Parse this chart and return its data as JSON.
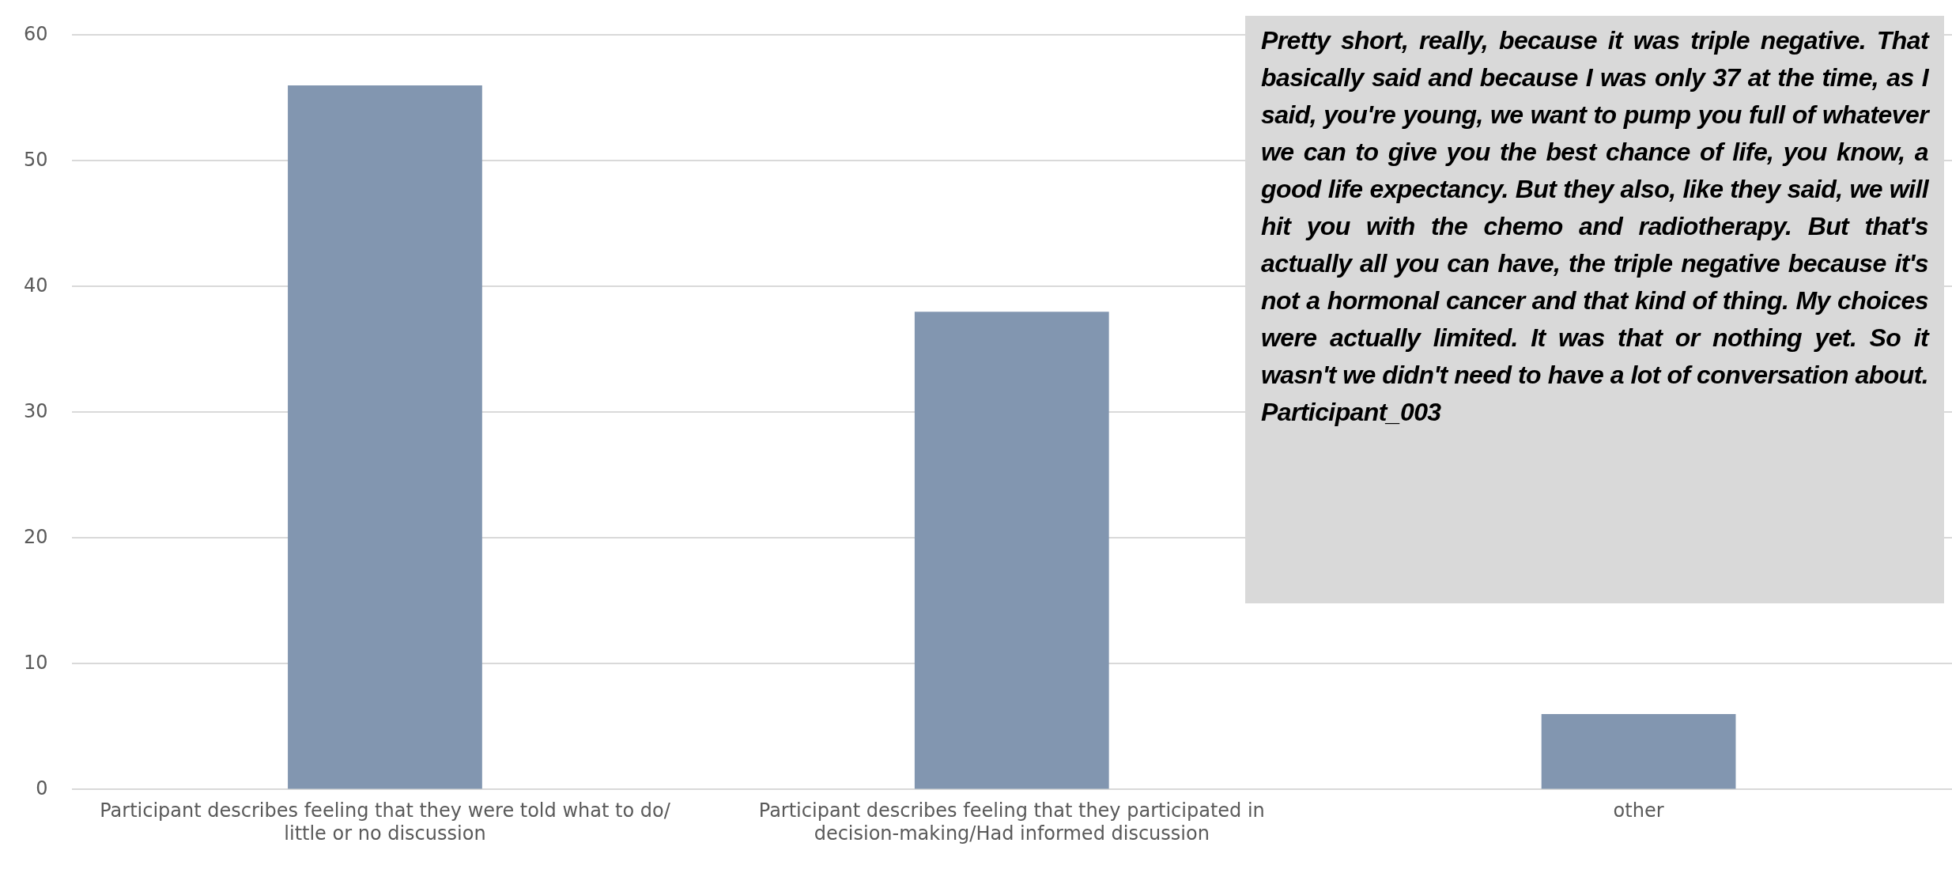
{
  "chart_data": {
    "type": "bar",
    "categories": [
      "Participant describes feeling that they were told what to do/ little or no discussion",
      "Participant describes feeling that they participated in decision-making/Had informed discussion",
      "other"
    ],
    "values": [
      56,
      38,
      6
    ],
    "color": "#8296b0",
    "ylim": [
      0,
      60
    ],
    "yticks": [
      0,
      10,
      20,
      30,
      40,
      50,
      60
    ],
    "grid": "y",
    "legend": false,
    "annotations": [
      "Pretty short, really, because it was triple negative. That basically said and because I was only 37 at the time, as I said, you're young, we want to pump you full of whatever we can to give you the best chance of life, you know, a good life expectancy. But they also, like they said, we will hit you with the chemo and radiotherapy. But that's actually all you can have, the triple negative because it's not a hormonal cancer and that kind of thing. My choices were actually limited. It was that or nothing yet. So it wasn't we didn't need to have a lot of conversation about. Participant_003"
    ]
  }
}
